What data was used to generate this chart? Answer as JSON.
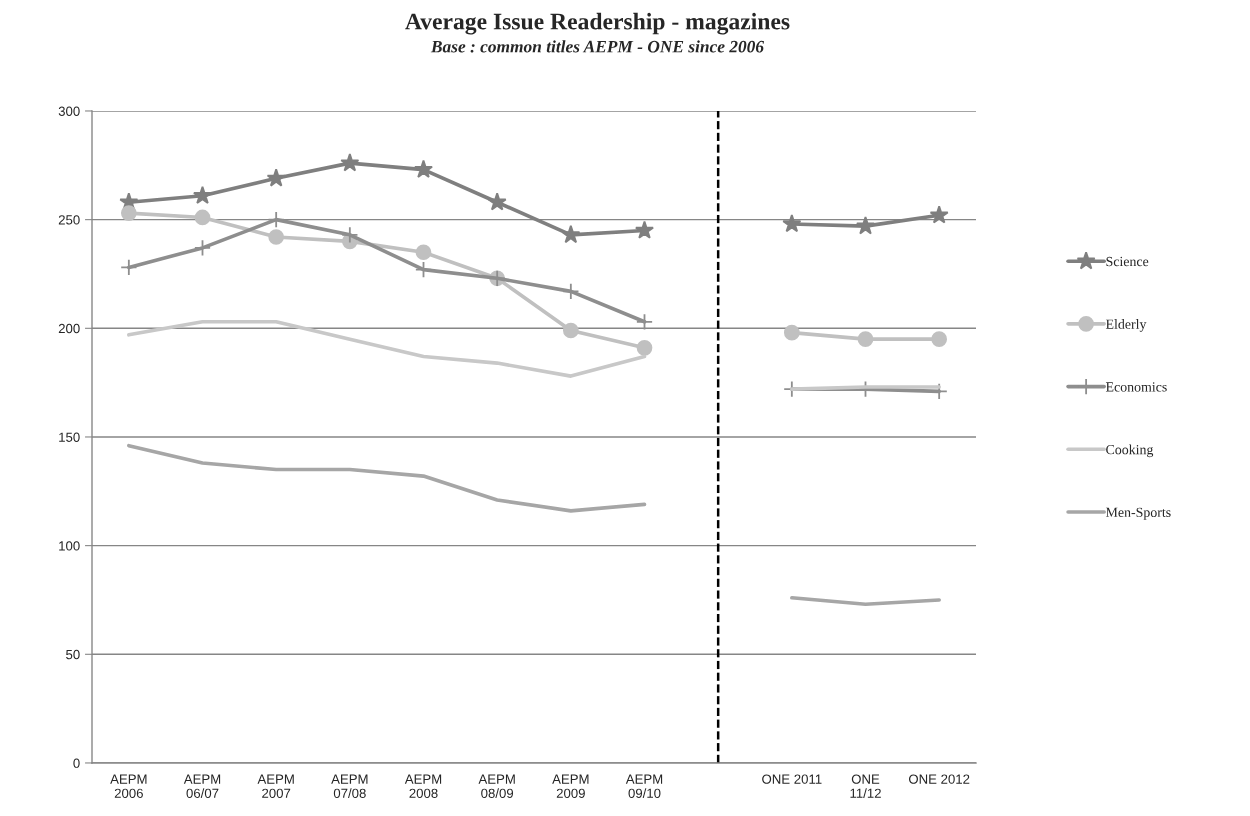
{
  "chart_data": {
    "type": "line",
    "title": "Average Issue Readership - magazines",
    "subtitle": "Base : common titles AEPM - ONE since 2006",
    "categories": [
      "AEPM\n2006",
      "AEPM\n06/07",
      "AEPM\n2007",
      "AEPM\n07/08",
      "AEPM\n2008",
      "AEPM\n08/09",
      "AEPM\n2009",
      "AEPM\n09/10",
      null,
      "ONE 2011",
      "ONE\n11/12",
      "ONE 2012"
    ],
    "series": [
      {
        "name": "Science",
        "color": "#7f7f7f",
        "marker": "star",
        "values": [
          258,
          261,
          269,
          276,
          273,
          258,
          243,
          245,
          null,
          248,
          247,
          252
        ]
      },
      {
        "name": "Elderly",
        "color": "#c0c0c0",
        "marker": "circle",
        "values": [
          253,
          251,
          242,
          240,
          235,
          223,
          199,
          191,
          null,
          198,
          195,
          195
        ]
      },
      {
        "name": "Economics",
        "color": "#8e8e8e",
        "marker": "cross",
        "values": [
          228,
          237,
          250,
          243,
          227,
          223,
          217,
          203,
          null,
          172,
          172,
          171
        ]
      },
      {
        "name": "Cooking",
        "color": "#c8c8c8",
        "marker": "none",
        "values": [
          197,
          203,
          203,
          195,
          187,
          184,
          178,
          187,
          null,
          172,
          173,
          173
        ]
      },
      {
        "name": "Men-Sports",
        "color": "#a6a6a6",
        "marker": "none",
        "values": [
          146,
          138,
          135,
          135,
          132,
          121,
          116,
          119,
          null,
          76,
          73,
          75
        ]
      }
    ],
    "ylim": [
      0,
      300
    ],
    "yticks": [
      0,
      50,
      100,
      150,
      200,
      250,
      300
    ],
    "grid": "y",
    "legend": "right",
    "line_style": "solid"
  }
}
